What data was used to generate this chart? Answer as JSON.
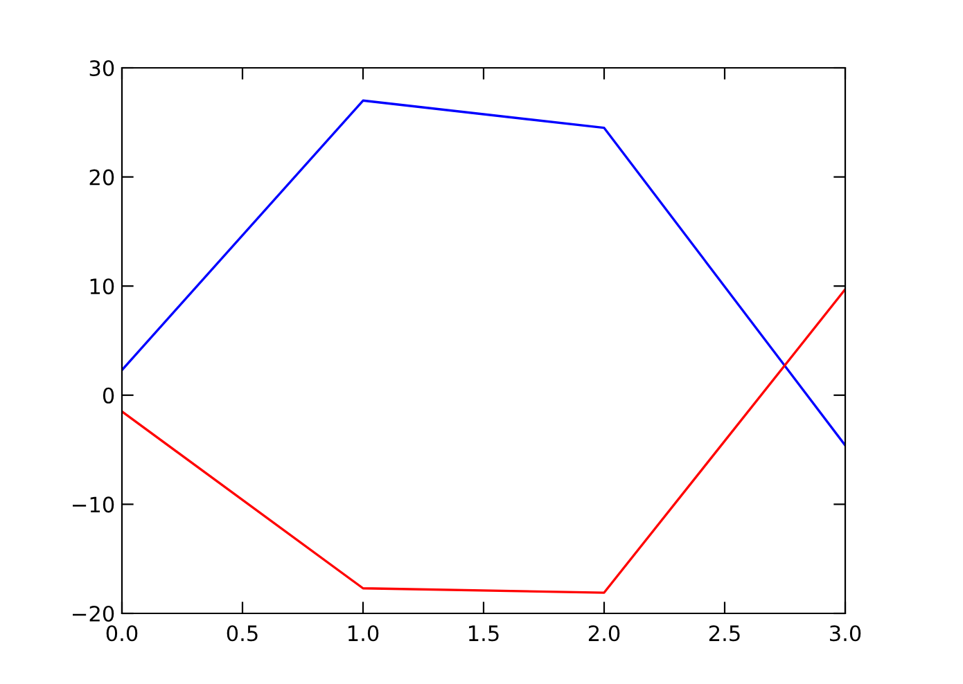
{
  "chart_data": {
    "type": "line",
    "x": [
      0,
      1,
      2,
      3
    ],
    "series": [
      {
        "color": "#0000ff",
        "values": [
          2.3,
          27.0,
          24.5,
          -4.6
        ]
      },
      {
        "color": "#ff0000",
        "values": [
          -1.5,
          -17.7,
          -18.1,
          9.7
        ]
      }
    ],
    "xlim": [
      0,
      3
    ],
    "ylim": [
      -20,
      30
    ],
    "xticks": [
      {
        "value": 0,
        "label": "0.0"
      },
      {
        "value": 0.5,
        "label": "0.5"
      },
      {
        "value": 1,
        "label": "1.0"
      },
      {
        "value": 1.5,
        "label": "1.5"
      },
      {
        "value": 2,
        "label": "2.0"
      },
      {
        "value": 2.5,
        "label": "2.5"
      },
      {
        "value": 3,
        "label": "3.0"
      }
    ],
    "yticks": [
      {
        "value": -20,
        "label": "−20"
      },
      {
        "value": -10,
        "label": "−10"
      },
      0,
      10,
      20,
      30
    ],
    "grid": false,
    "legend": false
  }
}
